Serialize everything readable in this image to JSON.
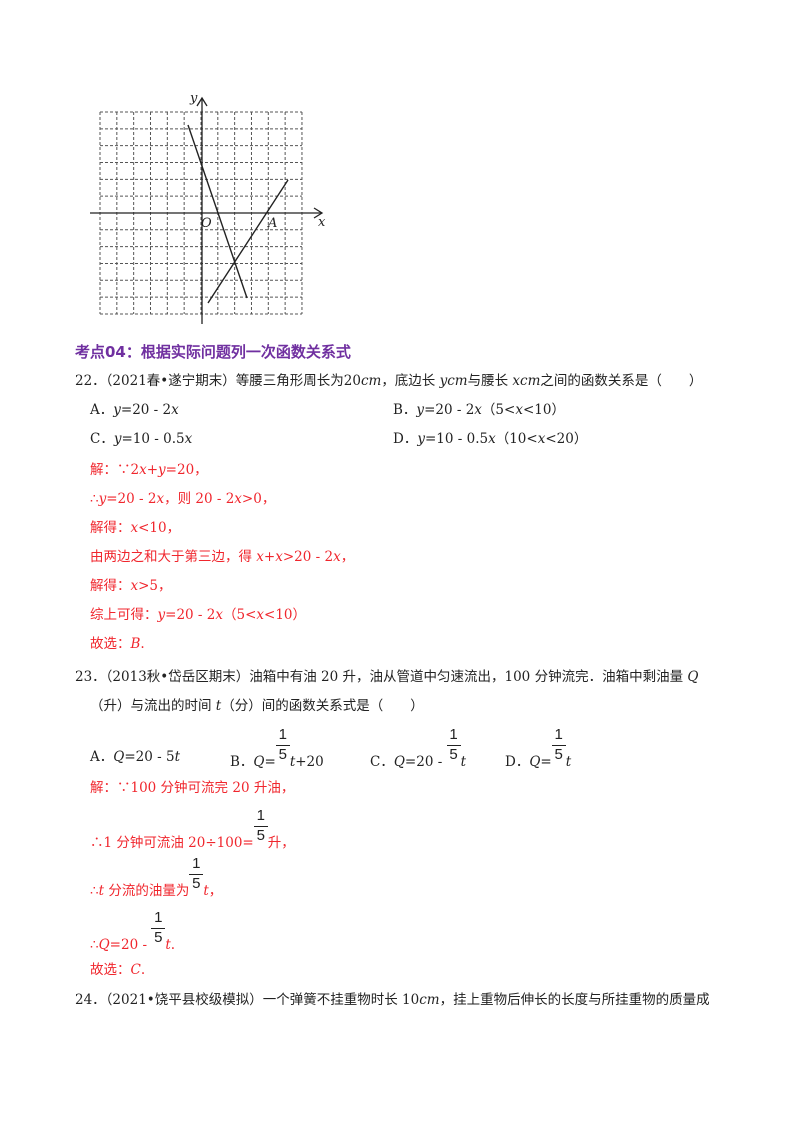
{
  "graph": {
    "x_label": "x",
    "y_label": "y",
    "origin_label": "O",
    "point_label": "A",
    "grid": "dashed"
  },
  "lines": [
    {
      "cls": "head",
      "segs": [
        {
          "t": "考点04：根据实际问题列一次函数关系式"
        }
      ]
    },
    {
      "cls": "",
      "segs": [
        {
          "t": "22．（2021春•遂宁期末）等腰三角形周长为20"
        },
        {
          "t": "cm",
          "i": 1
        },
        {
          "t": "，底边长 "
        },
        {
          "t": "ycm",
          "i": 1
        },
        {
          "t": "与腰长 "
        },
        {
          "t": "xcm",
          "i": 1
        },
        {
          "t": "之间的函数关系是（　　）"
        }
      ]
    },
    {
      "cls": "",
      "segs": [
        {
          "t": "A．"
        },
        {
          "t": "y",
          "i": 1
        },
        {
          "t": "=20 - 2"
        },
        {
          "t": "x",
          "i": 1
        }
      ]
    },
    {
      "cls": "",
      "segs": [
        {
          "t": "B．"
        },
        {
          "t": "y",
          "i": 1
        },
        {
          "t": "=20 - 2"
        },
        {
          "t": "x",
          "i": 1
        },
        {
          "t": "（5<"
        },
        {
          "t": "x",
          "i": 1
        },
        {
          "t": "<10）"
        }
      ]
    },
    {
      "cls": "",
      "segs": [
        {
          "t": "C．"
        },
        {
          "t": "y",
          "i": 1
        },
        {
          "t": "=10 - 0.5"
        },
        {
          "t": "x",
          "i": 1
        }
      ]
    },
    {
      "cls": "",
      "segs": [
        {
          "t": "D．"
        },
        {
          "t": "y",
          "i": 1
        },
        {
          "t": "=10 - 0.5"
        },
        {
          "t": "x",
          "i": 1
        },
        {
          "t": "（10<"
        },
        {
          "t": "x",
          "i": 1
        },
        {
          "t": "<20）"
        }
      ]
    },
    {
      "cls": "red",
      "segs": [
        {
          "t": "解：∵2"
        },
        {
          "t": "x",
          "i": 1
        },
        {
          "t": "+"
        },
        {
          "t": "y",
          "i": 1
        },
        {
          "t": "=20，"
        }
      ]
    },
    {
      "cls": "red",
      "segs": [
        {
          "t": "∴"
        },
        {
          "t": "y",
          "i": 1
        },
        {
          "t": "=20 - 2"
        },
        {
          "t": "x",
          "i": 1
        },
        {
          "t": "，则 20 - 2"
        },
        {
          "t": "x",
          "i": 1
        },
        {
          "t": ">0，"
        }
      ]
    },
    {
      "cls": "red",
      "segs": [
        {
          "t": "解得："
        },
        {
          "t": "x",
          "i": 1
        },
        {
          "t": "<10，"
        }
      ]
    },
    {
      "cls": "red",
      "segs": [
        {
          "t": "由两边之和大于第三边，得 "
        },
        {
          "t": "x",
          "i": 1
        },
        {
          "t": "+"
        },
        {
          "t": "x",
          "i": 1
        },
        {
          "t": ">20 - 2"
        },
        {
          "t": "x",
          "i": 1
        },
        {
          "t": "，"
        }
      ]
    },
    {
      "cls": "red",
      "segs": [
        {
          "t": "解得："
        },
        {
          "t": "x",
          "i": 1
        },
        {
          "t": ">5，"
        }
      ]
    },
    {
      "cls": "red",
      "segs": [
        {
          "t": "综上可得："
        },
        {
          "t": "y",
          "i": 1
        },
        {
          "t": "=20 - 2"
        },
        {
          "t": "x",
          "i": 1
        },
        {
          "t": "（5<"
        },
        {
          "t": "x",
          "i": 1
        },
        {
          "t": "<10）"
        }
      ]
    },
    {
      "cls": "red",
      "segs": [
        {
          "t": "故选："
        },
        {
          "t": "B",
          "i": 1
        },
        {
          "t": "."
        }
      ]
    },
    {
      "cls": "",
      "segs": [
        {
          "t": "23．（2013秋•岱岳区期末）油箱中有油 20 升，油从管道中匀速流出，100 分钟流完．油箱中剩油量 "
        },
        {
          "t": "Q",
          "i": 1
        }
      ]
    },
    {
      "cls": "",
      "segs": [
        {
          "t": "（升）与流出的时间 "
        },
        {
          "t": "t",
          "i": 1
        },
        {
          "t": "（分）间的函数关系式是（　　）"
        }
      ]
    },
    {
      "cls": "",
      "segs": [
        {
          "t": "A．"
        },
        {
          "t": "Q",
          "i": 1
        },
        {
          "t": "=20 - 5"
        },
        {
          "t": "t",
          "i": 1
        }
      ]
    },
    {
      "cls": "",
      "segs": [
        {
          "t": "B．"
        },
        {
          "t": "Q",
          "i": 1
        },
        {
          "t": "="
        },
        {
          "f": [
            "1",
            "5"
          ]
        },
        {
          "t": "t",
          "i": 1
        },
        {
          "t": "+20"
        }
      ]
    },
    {
      "cls": "",
      "segs": [
        {
          "t": "C．"
        },
        {
          "t": "Q",
          "i": 1
        },
        {
          "t": "=20 - "
        },
        {
          "f": [
            "1",
            "5"
          ]
        },
        {
          "t": "t",
          "i": 1
        }
      ]
    },
    {
      "cls": "",
      "segs": [
        {
          "t": "D．"
        },
        {
          "t": "Q",
          "i": 1
        },
        {
          "t": "="
        },
        {
          "f": [
            "1",
            "5"
          ]
        },
        {
          "t": "t",
          "i": 1
        }
      ]
    },
    {
      "cls": "red",
      "segs": [
        {
          "t": "解：∵100 分钟可流完 20 升油，"
        }
      ]
    },
    {
      "cls": "red",
      "segs": [
        {
          "t": "∴1 分钟可流油 20÷100="
        },
        {
          "f": [
            "1",
            "5"
          ]
        },
        {
          "t": "升，"
        }
      ]
    },
    {
      "cls": "red",
      "segs": [
        {
          "t": "∴"
        },
        {
          "t": "t",
          "i": 1
        },
        {
          "t": " 分流的油量为"
        },
        {
          "f": [
            "1",
            "5"
          ]
        },
        {
          "t": "t",
          "i": 1
        },
        {
          "t": "，"
        }
      ]
    },
    {
      "cls": "red",
      "segs": [
        {
          "t": "∴"
        },
        {
          "t": "Q",
          "i": 1
        },
        {
          "t": "=20 - "
        },
        {
          "f": [
            "1",
            "5"
          ]
        },
        {
          "t": "t",
          "i": 1
        },
        {
          "t": "."
        }
      ]
    },
    {
      "cls": "red",
      "segs": [
        {
          "t": "故选："
        },
        {
          "t": "C",
          "i": 1
        },
        {
          "t": "."
        }
      ]
    },
    {
      "cls": "",
      "segs": [
        {
          "t": "24．（2021•饶平县校级模拟）一个弹簧不挂重物时长 10"
        },
        {
          "t": "cm",
          "i": 1
        },
        {
          "t": "，挂上重物后伸长的长度与所挂重物的质量成"
        }
      ]
    }
  ]
}
